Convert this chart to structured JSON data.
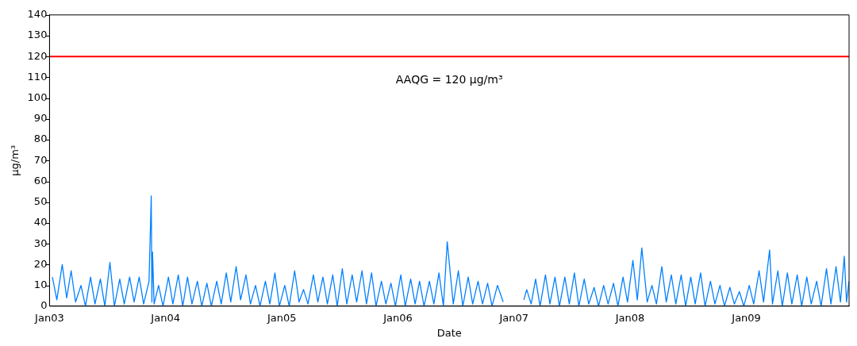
{
  "chart_data": {
    "type": "line",
    "xlabel": "Date",
    "ylabel": "µg/m³",
    "xlim": [
      "2003-01-01",
      "2009-11-20"
    ],
    "xticks": [
      {
        "value": "2003-01-01",
        "label": "Jan03"
      },
      {
        "value": "2004-01-01",
        "label": "Jan04"
      },
      {
        "value": "2005-01-01",
        "label": "Jan05"
      },
      {
        "value": "2006-01-01",
        "label": "Jan06"
      },
      {
        "value": "2007-01-01",
        "label": "Jan07"
      },
      {
        "value": "2008-01-01",
        "label": "Jan08"
      },
      {
        "value": "2009-01-01",
        "label": "Jan09"
      }
    ],
    "ylim": [
      0,
      140
    ],
    "yticks": [
      0,
      10,
      20,
      30,
      40,
      50,
      60,
      70,
      80,
      90,
      100,
      110,
      120,
      130,
      140
    ],
    "grid": false,
    "legend": false,
    "marker": "none",
    "line_style": "solid",
    "ref_lines": [
      {
        "axis": "y",
        "value": 120,
        "label": "AAQG = 120 µg/m³",
        "color": "#ff0000",
        "line_style": "solid"
      }
    ],
    "series": [
      {
        "color": "#0080ff",
        "x": [
          "2003-01-10",
          "2003-01-24",
          "2003-02-10",
          "2003-02-24",
          "2003-03-10",
          "2003-03-24",
          "2003-04-10",
          "2003-04-24",
          "2003-05-10",
          "2003-05-24",
          "2003-06-10",
          "2003-06-24",
          "2003-07-10",
          "2003-07-24",
          "2003-08-10",
          "2003-08-24",
          "2003-09-10",
          "2003-09-24",
          "2003-10-10",
          "2003-10-24",
          "2003-11-10",
          "2003-11-17",
          "2003-11-19",
          "2003-11-21",
          "2003-11-26",
          "2003-12-10",
          "2003-12-24",
          "2004-01-10",
          "2004-01-24",
          "2004-02-10",
          "2004-02-24",
          "2004-03-10",
          "2004-03-24",
          "2004-04-10",
          "2004-04-24",
          "2004-05-10",
          "2004-05-24",
          "2004-06-10",
          "2004-06-24",
          "2004-07-10",
          "2004-07-24",
          "2004-08-10",
          "2004-08-24",
          "2004-09-10",
          "2004-09-24",
          "2004-10-10",
          "2004-10-24",
          "2004-11-10",
          "2004-11-24",
          "2004-12-10",
          "2004-12-24",
          "2005-01-10",
          "2005-01-24",
          "2005-02-10",
          "2005-02-24",
          "2005-03-10",
          "2005-03-24",
          "2005-04-10",
          "2005-04-24",
          "2005-05-10",
          "2005-05-24",
          "2005-06-10",
          "2005-06-24",
          "2005-07-10",
          "2005-07-24",
          "2005-08-10",
          "2005-08-24",
          "2005-09-10",
          "2005-09-24",
          "2005-10-10",
          "2005-10-24",
          "2005-11-10",
          "2005-11-24",
          "2005-12-10",
          "2005-12-24",
          "2006-01-10",
          "2006-01-24",
          "2006-02-10",
          "2006-02-24",
          "2006-03-10",
          "2006-03-24",
          "2006-04-10",
          "2006-04-24",
          "2006-05-10",
          "2006-05-24",
          "2006-06-05",
          "2006-06-24",
          "2006-07-10",
          "2006-07-24",
          "2006-08-10",
          "2006-08-24",
          "2006-09-10",
          "2006-09-24",
          "2006-10-10",
          "2006-10-24",
          "2006-11-10",
          "2006-11-28",
          "2006-12-15",
          "2007-02-01",
          "2007-02-10",
          "2007-02-24",
          "2007-03-10",
          "2007-03-24",
          "2007-04-10",
          "2007-04-24",
          "2007-05-10",
          "2007-05-24",
          "2007-06-10",
          "2007-06-24",
          "2007-07-10",
          "2007-07-24",
          "2007-08-10",
          "2007-08-24",
          "2007-09-10",
          "2007-09-24",
          "2007-10-10",
          "2007-10-24",
          "2007-11-10",
          "2007-11-24",
          "2007-12-10",
          "2007-12-24",
          "2008-01-10",
          "2008-01-24",
          "2008-02-07",
          "2008-02-24",
          "2008-03-10",
          "2008-03-24",
          "2008-04-10",
          "2008-04-24",
          "2008-05-10",
          "2008-05-24",
          "2008-06-10",
          "2008-06-24",
          "2008-07-10",
          "2008-07-24",
          "2008-08-10",
          "2008-08-24",
          "2008-09-10",
          "2008-09-24",
          "2008-10-10",
          "2008-10-24",
          "2008-11-10",
          "2008-11-24",
          "2008-12-10",
          "2008-12-24",
          "2009-01-10",
          "2009-01-24",
          "2009-02-10",
          "2009-02-24",
          "2009-03-15",
          "2009-03-24",
          "2009-04-10",
          "2009-04-24",
          "2009-05-10",
          "2009-05-24",
          "2009-06-10",
          "2009-06-24",
          "2009-07-10",
          "2009-07-24",
          "2009-08-10",
          "2009-08-24",
          "2009-09-10",
          "2009-09-24",
          "2009-10-10",
          "2009-10-24",
          "2009-11-05",
          "2009-11-12",
          "2009-11-20"
        ],
        "values": [
          14,
          3,
          20,
          4,
          17,
          2,
          10,
          0,
          14,
          1,
          13,
          0,
          21,
          0,
          13,
          1,
          14,
          2,
          14,
          1,
          12,
          53,
          2,
          26,
          1,
          10,
          0,
          14,
          1,
          15,
          0,
          14,
          1,
          12,
          0,
          11,
          0,
          12,
          1,
          16,
          2,
          19,
          3,
          15,
          1,
          10,
          0,
          12,
          1,
          16,
          0,
          10,
          0,
          17,
          2,
          8,
          1,
          15,
          2,
          14,
          1,
          15,
          0,
          18,
          1,
          15,
          2,
          17,
          1,
          16,
          0,
          12,
          1,
          11,
          0,
          15,
          0,
          13,
          1,
          12,
          0,
          12,
          1,
          16,
          0,
          31,
          1,
          17,
          0,
          14,
          1,
          12,
          1,
          11,
          0,
          10,
          2,
          null,
          3,
          8,
          1,
          13,
          0,
          15,
          1,
          14,
          0,
          14,
          1,
          16,
          0,
          13,
          1,
          9,
          0,
          10,
          1,
          11,
          0,
          14,
          2,
          22,
          3,
          28,
          2,
          10,
          1,
          19,
          2,
          15,
          1,
          15,
          0,
          14,
          1,
          16,
          0,
          12,
          1,
          10,
          0,
          9,
          1,
          7,
          0,
          10,
          1,
          17,
          2,
          27,
          1,
          17,
          0,
          16,
          1,
          15,
          0,
          14,
          1,
          12,
          0,
          18,
          1,
          19,
          2,
          24,
          2,
          12
        ]
      }
    ]
  }
}
